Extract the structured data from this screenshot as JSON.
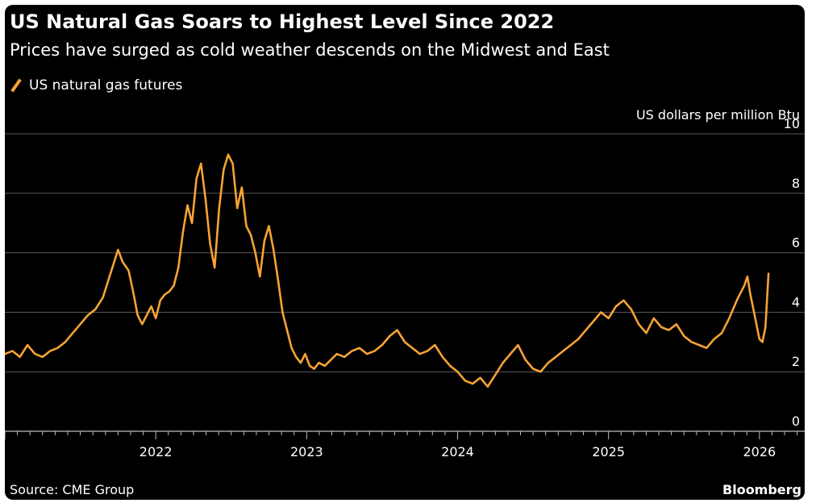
{
  "chart_data": {
    "type": "line",
    "title": "US Natural Gas Soars to Highest Level Since 2022",
    "subtitle": "Prices have surged as cold weather descends on the Midwest and East",
    "ylabel": "US dollars per million Btu",
    "xlabel": "",
    "ylim": [
      0,
      10
    ],
    "xlim": [
      2021.0,
      2026.3
    ],
    "y_ticks": [
      "0",
      "2",
      "4",
      "6",
      "8",
      "10"
    ],
    "x_ticks": [
      {
        "value": 2022,
        "label": "2022"
      },
      {
        "value": 2023,
        "label": "2023"
      },
      {
        "value": 2024,
        "label": "2024"
      },
      {
        "value": 2025,
        "label": "2025"
      },
      {
        "value": 2026,
        "label": "2026"
      }
    ],
    "grid": true,
    "legend_position": "top-left",
    "series": [
      {
        "name": "US natural gas futures",
        "color": "#f7a334",
        "x": [
          2021.0,
          2021.05,
          2021.1,
          2021.15,
          2021.2,
          2021.25,
          2021.3,
          2021.35,
          2021.4,
          2021.45,
          2021.5,
          2021.55,
          2021.6,
          2021.65,
          2021.7,
          2021.75,
          2021.78,
          2021.82,
          2021.85,
          2021.88,
          2021.91,
          2021.94,
          2021.97,
          2022.0,
          2022.03,
          2022.06,
          2022.09,
          2022.12,
          2022.15,
          2022.18,
          2022.21,
          2022.24,
          2022.27,
          2022.3,
          2022.33,
          2022.36,
          2022.39,
          2022.42,
          2022.45,
          2022.48,
          2022.51,
          2022.54,
          2022.57,
          2022.6,
          2022.63,
          2022.66,
          2022.69,
          2022.72,
          2022.75,
          2022.78,
          2022.81,
          2022.84,
          2022.87,
          2022.9,
          2022.93,
          2022.96,
          2022.99,
          2023.02,
          2023.05,
          2023.08,
          2023.12,
          2023.16,
          2023.2,
          2023.25,
          2023.3,
          2023.35,
          2023.4,
          2023.45,
          2023.5,
          2023.55,
          2023.6,
          2023.65,
          2023.7,
          2023.75,
          2023.8,
          2023.85,
          2023.9,
          2023.95,
          2024.0,
          2024.05,
          2024.1,
          2024.15,
          2024.2,
          2024.25,
          2024.3,
          2024.35,
          2024.4,
          2024.45,
          2024.5,
          2024.55,
          2024.6,
          2024.65,
          2024.7,
          2024.75,
          2024.8,
          2024.85,
          2024.9,
          2024.95,
          2025.0,
          2025.05,
          2025.1,
          2025.15,
          2025.2,
          2025.25,
          2025.3,
          2025.35,
          2025.4,
          2025.45,
          2025.5,
          2025.55,
          2025.6,
          2025.65,
          2025.7,
          2025.75,
          2025.8,
          2025.85,
          2025.9,
          2025.92,
          2025.94,
          2025.96,
          2025.98,
          2026.0,
          2026.02,
          2026.04,
          2026.06
        ],
        "values": [
          2.6,
          2.7,
          2.5,
          2.9,
          2.6,
          2.5,
          2.7,
          2.8,
          3.0,
          3.3,
          3.6,
          3.9,
          4.1,
          4.5,
          5.3,
          6.1,
          5.7,
          5.4,
          4.7,
          3.9,
          3.6,
          3.9,
          4.2,
          3.8,
          4.4,
          4.6,
          4.7,
          4.9,
          5.5,
          6.7,
          7.6,
          7.0,
          8.5,
          9.0,
          7.8,
          6.3,
          5.5,
          7.5,
          8.8,
          9.3,
          9.0,
          7.5,
          8.2,
          6.9,
          6.6,
          6.0,
          5.2,
          6.4,
          6.9,
          6.1,
          5.1,
          4.0,
          3.4,
          2.8,
          2.5,
          2.3,
          2.6,
          2.2,
          2.1,
          2.3,
          2.2,
          2.4,
          2.6,
          2.5,
          2.7,
          2.8,
          2.6,
          2.7,
          2.9,
          3.2,
          3.4,
          3.0,
          2.8,
          2.6,
          2.7,
          2.9,
          2.5,
          2.2,
          2.0,
          1.7,
          1.6,
          1.8,
          1.5,
          1.9,
          2.3,
          2.6,
          2.9,
          2.4,
          2.1,
          2.0,
          2.3,
          2.5,
          2.7,
          2.9,
          3.1,
          3.4,
          3.7,
          4.0,
          3.8,
          4.2,
          4.4,
          4.1,
          3.6,
          3.3,
          3.8,
          3.5,
          3.4,
          3.6,
          3.2,
          3.0,
          2.9,
          2.8,
          3.1,
          3.3,
          3.8,
          4.4,
          4.9,
          5.2,
          4.6,
          4.1,
          3.6,
          3.1,
          3.0,
          3.5,
          5.3
        ]
      }
    ]
  },
  "source": "Source: CME Group",
  "brand": "Bloomberg"
}
